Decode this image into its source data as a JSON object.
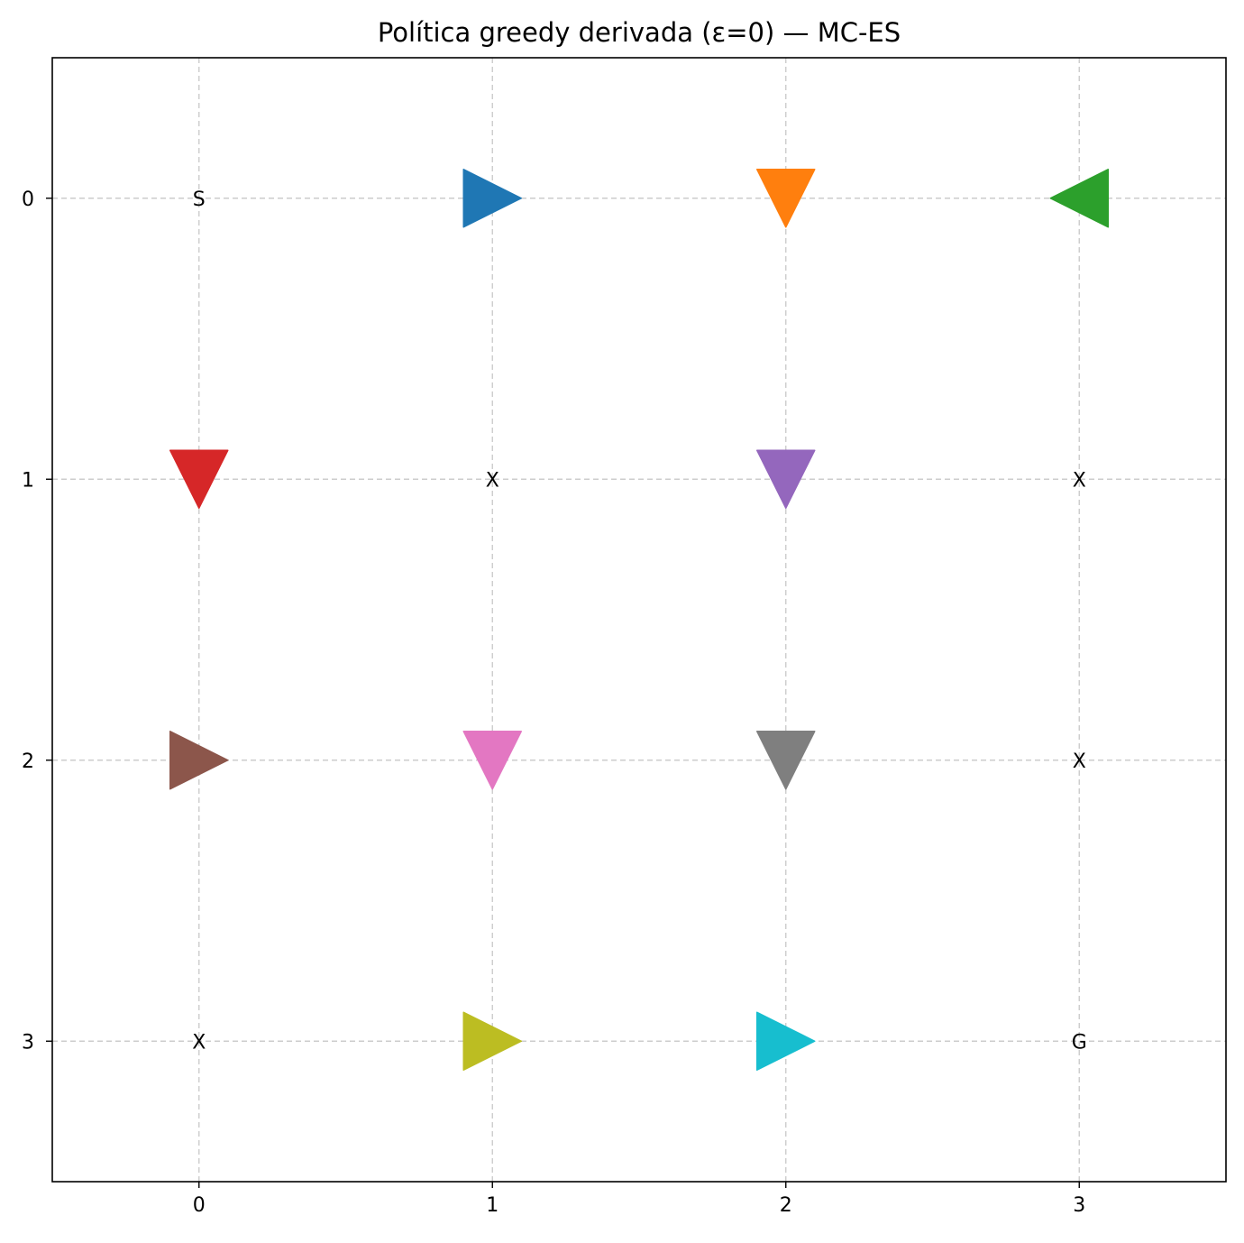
{
  "chart_data": {
    "type": "scatter",
    "title": "Política greedy derivada (ε=0) — MC-ES",
    "xlabel": "",
    "ylabel": "",
    "xlim": [
      -0.5,
      3.5
    ],
    "ylim": [
      3.5,
      -0.5
    ],
    "x_ticks": [
      "0",
      "1",
      "2",
      "3"
    ],
    "y_ticks": [
      "0",
      "1",
      "2",
      "3"
    ],
    "grid": true,
    "legend": "none",
    "cell_labels": [
      {
        "x": 0,
        "y": 0,
        "text": "S"
      },
      {
        "x": 1,
        "y": 1,
        "text": "X"
      },
      {
        "x": 3,
        "y": 1,
        "text": "X"
      },
      {
        "x": 3,
        "y": 2,
        "text": "X"
      },
      {
        "x": 0,
        "y": 3,
        "text": "X"
      },
      {
        "x": 3,
        "y": 3,
        "text": "G"
      }
    ],
    "arrows": [
      {
        "x": 1,
        "y": 0,
        "direction": "right",
        "color": "#1f77b4"
      },
      {
        "x": 2,
        "y": 0,
        "direction": "down",
        "color": "#ff7f0e"
      },
      {
        "x": 3,
        "y": 0,
        "direction": "left",
        "color": "#2ca02c"
      },
      {
        "x": 0,
        "y": 1,
        "direction": "down",
        "color": "#d62728"
      },
      {
        "x": 2,
        "y": 1,
        "direction": "down",
        "color": "#9467bd"
      },
      {
        "x": 0,
        "y": 2,
        "direction": "right",
        "color": "#8c564b"
      },
      {
        "x": 1,
        "y": 2,
        "direction": "down",
        "color": "#e377c2"
      },
      {
        "x": 2,
        "y": 2,
        "direction": "down",
        "color": "#7f7f7f"
      },
      {
        "x": 1,
        "y": 3,
        "direction": "right",
        "color": "#bcbd22"
      },
      {
        "x": 2,
        "y": 3,
        "direction": "right",
        "color": "#17becf"
      }
    ]
  }
}
